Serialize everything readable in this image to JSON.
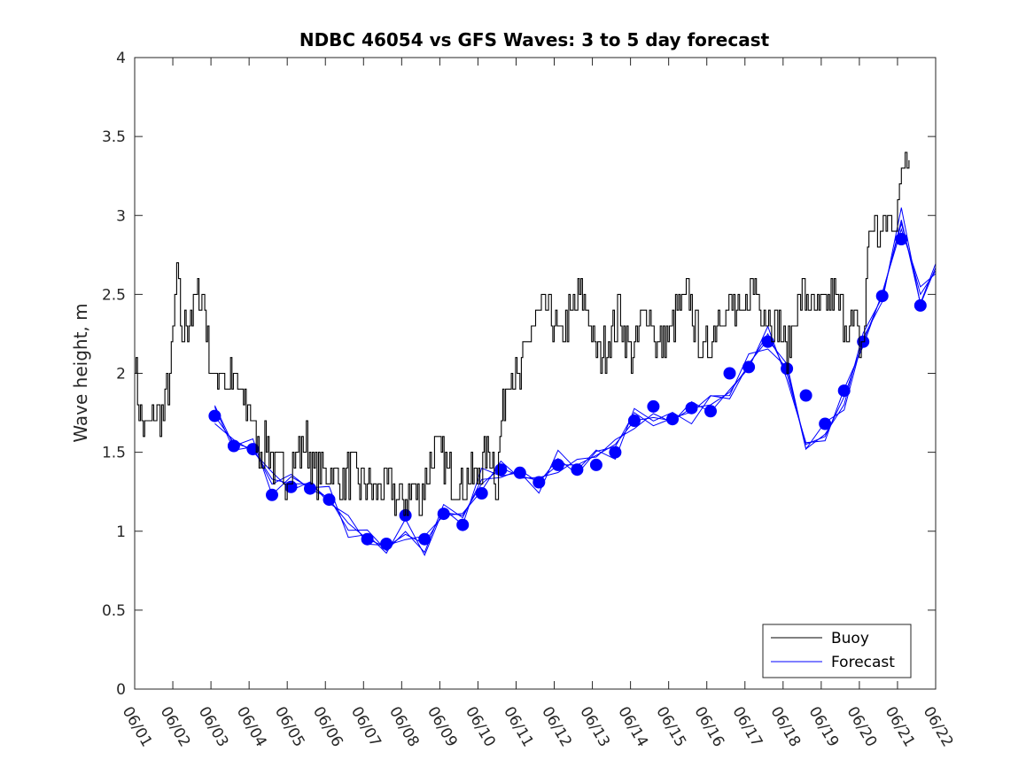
{
  "chart_data": {
    "type": "line",
    "title": "NDBC 46054 vs GFS Waves: 3 to 5 day forecast",
    "xlabel": "",
    "ylabel": "Wave height, m",
    "xlim": [
      "06/01",
      "06/22"
    ],
    "ylim": [
      0,
      4
    ],
    "x_tick_labels": [
      "06/01",
      "06/02",
      "06/03",
      "06/04",
      "06/05",
      "06/06",
      "06/07",
      "06/08",
      "06/09",
      "06/10",
      "06/11",
      "06/12",
      "06/13",
      "06/14",
      "06/15",
      "06/16",
      "06/17",
      "06/18",
      "06/19",
      "06/20",
      "06/21",
      "06/22"
    ],
    "y_tick_labels": [
      "0",
      "0.5",
      "1",
      "1.5",
      "2",
      "2.5",
      "3",
      "3.5",
      "4"
    ],
    "grid": false,
    "legend": {
      "placement": "bottom-right",
      "entries": [
        "Buoy",
        "Forecast"
      ]
    },
    "colors": {
      "buoy": "#000000",
      "forecast": "#0000ff"
    },
    "series": [
      {
        "name": "Buoy",
        "x_day": [
          1.0,
          1.15,
          1.3,
          1.5,
          1.75,
          2.0,
          2.1,
          2.2,
          2.35,
          2.5,
          2.65,
          2.8,
          2.95,
          3.1,
          3.25,
          3.4,
          3.55,
          3.7,
          3.85,
          4.0,
          4.15,
          4.3,
          4.45,
          4.6,
          4.75,
          4.9,
          5.0,
          5.1,
          5.3,
          5.5,
          5.7,
          5.9,
          6.1,
          6.3,
          6.5,
          6.7,
          6.9,
          7.1,
          7.3,
          7.5,
          7.7,
          7.9,
          8.1,
          8.3,
          8.5,
          8.7,
          8.9,
          9.0,
          9.15,
          9.3,
          9.45,
          9.6,
          9.75,
          9.9,
          10.05,
          10.2,
          10.35,
          10.5,
          10.65,
          10.8,
          10.95,
          11.1,
          11.25,
          11.4,
          11.55,
          11.7,
          11.85,
          12.0,
          12.15,
          12.3,
          12.5,
          12.7,
          12.9,
          13.1,
          13.3,
          13.5,
          13.7,
          13.9,
          14.1,
          14.3,
          14.5,
          14.7,
          14.9,
          15.1,
          15.3,
          15.5,
          15.7,
          15.9,
          16.1,
          16.3,
          16.5,
          16.7,
          16.9,
          17.1,
          17.3,
          17.5,
          17.7,
          17.9,
          18.1,
          18.3,
          18.5,
          18.7,
          18.9,
          19.1,
          19.3,
          19.5,
          19.7,
          19.9,
          20.0,
          20.1,
          20.25,
          20.4,
          20.55,
          20.7,
          20.85,
          21.0,
          21.1,
          21.2,
          21.3
        ],
        "values": [
          2.1,
          1.7,
          1.65,
          1.75,
          1.7,
          2.2,
          2.7,
          2.2,
          2.3,
          2.4,
          2.5,
          2.5,
          2.1,
          1.9,
          2.1,
          1.9,
          1.95,
          1.9,
          1.8,
          1.8,
          1.6,
          1.5,
          1.55,
          1.45,
          1.4,
          1.4,
          1.35,
          1.45,
          1.5,
          1.55,
          1.4,
          1.35,
          1.4,
          1.35,
          1.3,
          1.4,
          1.3,
          1.3,
          1.25,
          1.3,
          1.3,
          1.2,
          1.2,
          1.25,
          1.2,
          1.4,
          1.55,
          1.5,
          1.4,
          1.35,
          1.3,
          1.3,
          1.35,
          1.35,
          1.4,
          1.5,
          1.5,
          1.3,
          1.8,
          2.0,
          2.0,
          1.9,
          2.2,
          2.3,
          2.35,
          2.4,
          2.4,
          2.35,
          2.2,
          2.3,
          2.4,
          2.5,
          2.35,
          2.1,
          2.15,
          2.2,
          2.4,
          2.2,
          2.1,
          2.35,
          2.4,
          2.15,
          2.2,
          2.3,
          2.4,
          2.5,
          2.3,
          2.1,
          2.2,
          2.4,
          2.4,
          2.4,
          2.3,
          2.5,
          2.55,
          2.4,
          2.35,
          2.3,
          2.1,
          2.4,
          2.5,
          2.45,
          2.35,
          2.4,
          2.5,
          2.4,
          2.3,
          2.3,
          2.2,
          2.2,
          2.9,
          2.95,
          2.85,
          3.0,
          2.9,
          3.1,
          3.15,
          3.4,
          3.35
        ]
      },
      {
        "name": "Forecast",
        "x_day": [
          3.1,
          3.6,
          4.1,
          4.6,
          5.1,
          5.6,
          6.1,
          6.6,
          7.1,
          7.6,
          8.1,
          8.6,
          9.1,
          9.6,
          10.1,
          10.6,
          11.1,
          11.6,
          12.1,
          12.6,
          13.1,
          13.6,
          14.1,
          14.6,
          15.1,
          15.6,
          16.1,
          16.6,
          17.1,
          17.6,
          18.1,
          18.6,
          19.1,
          19.6,
          20.1,
          20.6,
          21.1,
          21.6,
          22.0
        ],
        "values": [
          1.73,
          1.56,
          1.52,
          1.33,
          1.3,
          1.3,
          1.2,
          1.05,
          0.95,
          0.9,
          0.98,
          0.92,
          1.12,
          1.1,
          1.3,
          1.4,
          1.35,
          1.32,
          1.42,
          1.42,
          1.48,
          1.55,
          1.7,
          1.72,
          1.7,
          1.78,
          1.8,
          1.88,
          2.05,
          2.25,
          2.0,
          1.55,
          1.6,
          1.85,
          2.2,
          2.5,
          2.95,
          2.5,
          2.65
        ]
      },
      {
        "name": "Forecast markers",
        "x_day": [
          3.1,
          3.6,
          4.1,
          4.6,
          5.1,
          5.6,
          6.1,
          7.1,
          7.6,
          8.1,
          8.6,
          9.1,
          9.6,
          10.1,
          10.6,
          11.1,
          11.6,
          12.1,
          12.6,
          13.1,
          13.6,
          14.1,
          14.6,
          15.1,
          15.6,
          16.1,
          16.6,
          17.1,
          17.6,
          18.1,
          18.6,
          19.1,
          19.6,
          20.1,
          20.6,
          21.1,
          21.6
        ],
        "values": [
          1.73,
          1.54,
          1.52,
          1.23,
          1.28,
          1.27,
          1.2,
          0.95,
          0.92,
          1.1,
          0.95,
          1.11,
          1.04,
          1.24,
          1.39,
          1.37,
          1.31,
          1.42,
          1.39,
          1.42,
          1.5,
          1.7,
          1.79,
          1.71,
          1.78,
          1.76,
          2.0,
          2.04,
          2.2,
          2.03,
          1.86,
          1.68,
          1.89,
          2.2,
          2.49,
          2.85,
          2.43
        ]
      }
    ]
  }
}
